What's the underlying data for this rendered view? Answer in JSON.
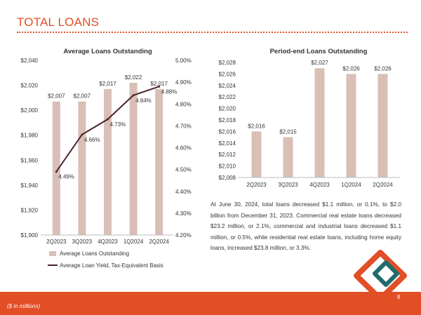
{
  "page": {
    "title": "TOTAL LOANS",
    "summary": "At June 30, 2024, total loans decreased $1.1 million, or 0.1%, to $2.0 billion from December 31, 2023. Commercial real estate loans decreased $23.2 million, or 2.1%, commercial and industrial loans decreased $1.1 million, or 0.5%, while residential real estate loans, including home equity loans, increased $23.8 million, or 3.3%.",
    "footnote": "($ in millions)",
    "page_number": "8"
  },
  "colors": {
    "accent": "#e24e26",
    "bar": "#d9bfb6",
    "line": "#4a2530",
    "logo_green": "#1f6b6b"
  },
  "chart_data": [
    {
      "type": "bar",
      "title": "Average Loans Outstanding",
      "categories": [
        "2Q2023",
        "3Q2023",
        "4Q2023",
        "1Q2024",
        "2Q2024"
      ],
      "series": [
        {
          "name": "Average Loans Outstanding",
          "type": "bar",
          "axis": "left",
          "values": [
            2007,
            2007,
            2017,
            2022,
            2017
          ],
          "labels": [
            "$2,007",
            "$2,007",
            "$2,017",
            "$2,022",
            "$2,017"
          ]
        },
        {
          "name": "Average Loan Yield, Tax-Equivalent Basis",
          "type": "line",
          "axis": "right",
          "values": [
            4.49,
            4.66,
            4.73,
            4.84,
            4.88
          ],
          "labels": [
            "4.49%",
            "4.66%",
            "4.73%",
            "4.84%",
            "4.88%"
          ]
        }
      ],
      "ylim": [
        1900,
        2040
      ],
      "y_ticks": [
        "$1,900",
        "$1,920",
        "$1,940",
        "$1,960",
        "$1,980",
        "$2,000",
        "$2,020",
        "$2,040"
      ],
      "y2lim": [
        4.2,
        5.0
      ],
      "y2_ticks": [
        "4.20%",
        "4.30%",
        "4.40%",
        "4.50%",
        "4.60%",
        "4.70%",
        "4.80%",
        "4.90%",
        "5.00%"
      ],
      "legend": "bottom",
      "grid": false
    },
    {
      "type": "bar",
      "title": "Period-end Loans Outstanding",
      "categories": [
        "2Q2023",
        "3Q2023",
        "4Q2023",
        "1Q2024",
        "2Q2024"
      ],
      "values": [
        2016,
        2015,
        2027,
        2026,
        2026
      ],
      "labels": [
        "$2,016",
        "$2,015",
        "$2,027",
        "$2,026",
        "$2,026"
      ],
      "ylim": [
        2008,
        2028
      ],
      "y_ticks": [
        "$2,008",
        "$2,010",
        "$2,012",
        "$2,014",
        "$2,016",
        "$2,018",
        "$2,020",
        "$2,022",
        "$2,024",
        "$2,026",
        "$2,028"
      ],
      "legend": "none",
      "grid": false
    }
  ]
}
